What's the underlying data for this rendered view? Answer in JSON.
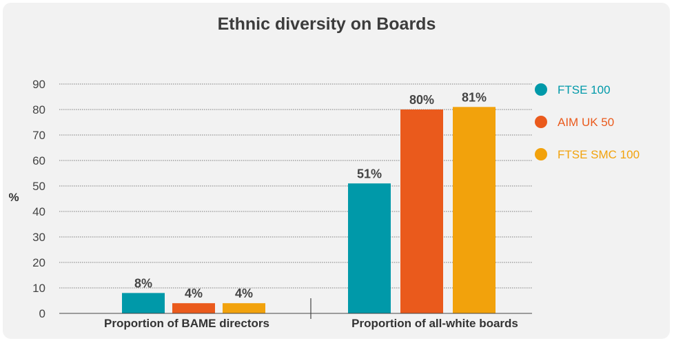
{
  "chart_data": {
    "type": "bar",
    "title": "Ethnic diversity on Boards",
    "ylabel": "%",
    "xlabel": "",
    "ylim": [
      0,
      90
    ],
    "yticks": [
      0,
      10,
      20,
      30,
      40,
      50,
      60,
      70,
      80,
      90
    ],
    "categories": [
      "Proportion of BAME directors",
      "Proportion of all-white boards"
    ],
    "series": [
      {
        "name": "FTSE 100",
        "values": [
          8,
          51
        ],
        "labels": [
          "8%",
          "51%"
        ],
        "color": "#0099a9"
      },
      {
        "name": "AIM UK 50",
        "values": [
          4,
          80
        ],
        "labels": [
          "4%",
          "80%"
        ],
        "color": "#ea5a1c"
      },
      {
        "name": "FTSE SMC 100",
        "values": [
          4,
          81
        ],
        "labels": [
          "4%",
          "81%"
        ],
        "color": "#f2a20c"
      }
    ],
    "grid": true,
    "legend_position": "right"
  }
}
